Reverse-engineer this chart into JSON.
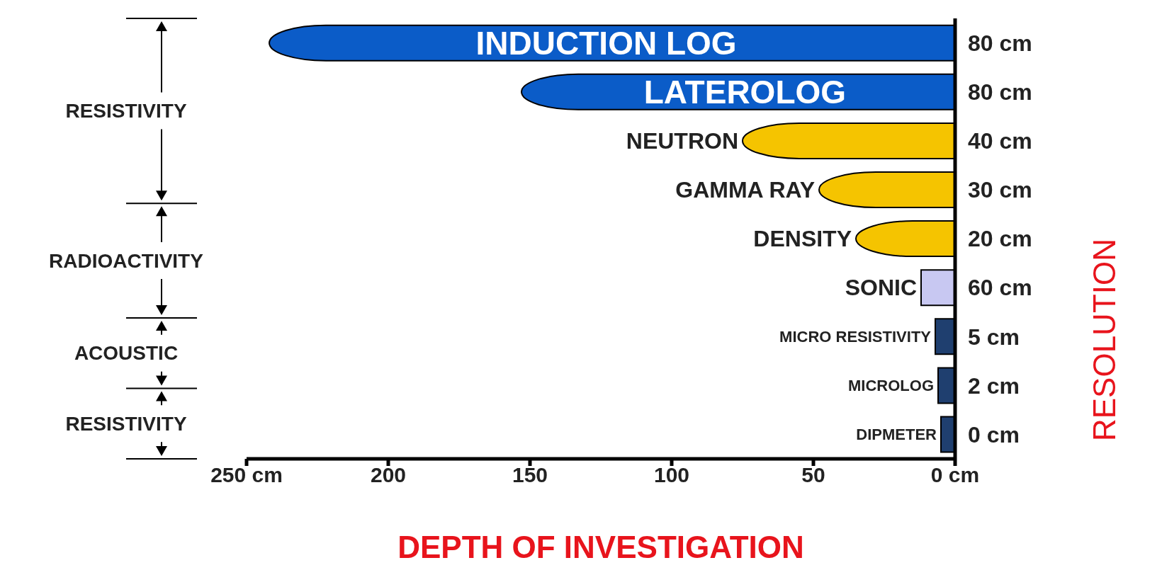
{
  "chart_data": {
    "type": "bar",
    "orientation": "horizontal",
    "categories": [
      "INDUCTION LOG",
      "LATEROLOG",
      "NEUTRON",
      "GAMMA RAY",
      "DENSITY",
      "SONIC",
      "MICRO RESISTIVITY",
      "MICROLOG",
      "DIPMETER"
    ],
    "values": [
      242,
      153,
      75,
      48,
      35,
      12,
      7,
      6,
      5
    ],
    "colors": [
      "#0b5cc8",
      "#0b5cc8",
      "#f5c400",
      "#f5c400",
      "#f5c400",
      "#c8c8f2",
      "#1f3f6f",
      "#1f3f6f",
      "#1f3f6f"
    ],
    "xlim": [
      250,
      0
    ],
    "xticks": [
      {
        "value": 250,
        "label": "250 cm"
      },
      {
        "value": 200,
        "label": "200"
      },
      {
        "value": 150,
        "label": "150"
      },
      {
        "value": 100,
        "label": "100"
      },
      {
        "value": 50,
        "label": "50"
      },
      {
        "value": 0,
        "label": "0 cm"
      }
    ],
    "xlabel": "DEPTH OF INVESTIGATION",
    "y2label": "RESOLUTION",
    "grid": false,
    "legend": false,
    "annotations": [
      "RESISTIVITY",
      "RADIOACTIVITY",
      "ACOUSTIC",
      "RESISTIVITY",
      "80 cm",
      "80 cm",
      "40 cm",
      "30 cm",
      "20 cm",
      "60 cm",
      "5 cm",
      "2 cm",
      "0 cm"
    ]
  }
}
